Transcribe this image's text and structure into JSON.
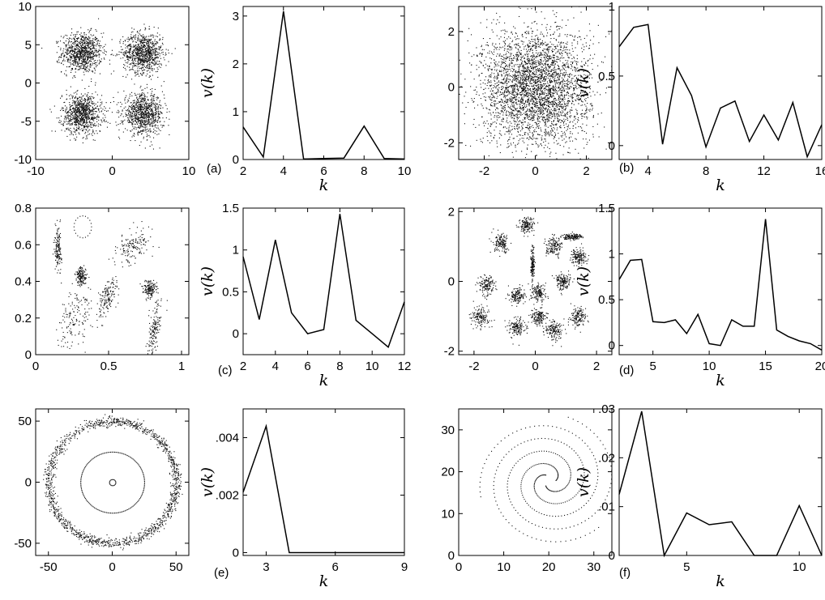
{
  "chart_data": [
    {
      "id": "a-scatter",
      "type": "scatter",
      "xlim": [
        -10,
        10
      ],
      "ylim": [
        -10,
        10
      ],
      "xticks": [
        "-10",
        "0",
        "10"
      ],
      "yticks": [
        "-10",
        "-5",
        "0",
        "5",
        "10"
      ],
      "clusters": [
        {
          "x": -4,
          "y": 4,
          "sx": 1.3,
          "sy": 1.3
        },
        {
          "x": 4,
          "y": 4,
          "sx": 1.3,
          "sy": 1.3
        },
        {
          "x": -4,
          "y": -4,
          "sx": 1.3,
          "sy": 1.3
        },
        {
          "x": 4,
          "y": -4,
          "sx": 1.3,
          "sy": 1.3
        }
      ]
    },
    {
      "id": "a-line",
      "type": "line",
      "panel": "(a)",
      "xlabel": "k",
      "ylabel": "v(k)",
      "xlim": [
        2,
        10
      ],
      "ylim": [
        0,
        3.2
      ],
      "xticks": [
        "2",
        "4",
        "6",
        "8",
        "10"
      ],
      "yticks": [
        "0",
        "1",
        "2",
        "3"
      ],
      "x": [
        2,
        3,
        4,
        5,
        6,
        7,
        8,
        9,
        10
      ],
      "y": [
        0.68,
        0.05,
        3.1,
        0.01,
        0.02,
        0.03,
        0.7,
        0.02,
        0.01
      ]
    },
    {
      "id": "b-scatter",
      "type": "scatter",
      "xlim": [
        -3,
        3
      ],
      "ylim": [
        -2.6,
        2.9
      ],
      "xticks": [
        "-2",
        "0",
        "2"
      ],
      "yticks": [
        "-2",
        "0",
        "2"
      ],
      "clusters": [
        {
          "x": 0,
          "y": 0,
          "sx": 1.05,
          "sy": 1.05
        }
      ]
    },
    {
      "id": "b-line",
      "type": "line",
      "panel": "(b)",
      "xlabel": "k",
      "ylabel": "v(k)",
      "xlim": [
        2,
        16
      ],
      "ylim": [
        -0.1,
        1
      ],
      "xticks": [
        "4",
        "8",
        "12",
        "16"
      ],
      "yticks": [
        "0",
        "0.5",
        "1"
      ],
      "x": [
        2,
        3,
        4,
        5,
        6,
        7,
        8,
        9,
        10,
        11,
        12,
        13,
        14,
        15,
        16
      ],
      "y": [
        0.71,
        0.85,
        0.87,
        0.01,
        0.56,
        0.36,
        -0.01,
        0.27,
        0.32,
        0.03,
        0.22,
        0.04,
        0.31,
        -0.08,
        0.15
      ]
    },
    {
      "id": "c-scatter",
      "type": "scatter",
      "xlim": [
        0,
        1.05
      ],
      "ylim": [
        0,
        0.8
      ],
      "xticks": [
        "0",
        "0.5",
        "1"
      ],
      "yticks": [
        "0",
        "0.2",
        "0.4",
        "0.6",
        "0.8"
      ],
      "clusters": [
        {
          "x": 0.15,
          "y": 0.58,
          "sx": 0.012,
          "sy": 0.06
        },
        {
          "x": 0.32,
          "y": 0.7,
          "ring": 0.06
        },
        {
          "x": 0.67,
          "y": 0.6,
          "sx": 0.07,
          "sy": 0.04,
          "tilt": 0.5
        },
        {
          "x": 0.31,
          "y": 0.43,
          "sx": 0.02,
          "sy": 0.025
        },
        {
          "x": 0.49,
          "y": 0.31,
          "sx": 0.025,
          "sy": 0.06,
          "tilt": -0.4
        },
        {
          "x": 0.78,
          "y": 0.36,
          "sx": 0.025,
          "sy": 0.025
        },
        {
          "x": 0.26,
          "y": 0.2,
          "sx": 0.05,
          "sy": 0.09,
          "tilt": -0.3
        },
        {
          "x": 0.81,
          "y": 0.14,
          "sx": 0.02,
          "sy": 0.07,
          "tilt": -0.2
        }
      ]
    },
    {
      "id": "c-line",
      "type": "line",
      "panel": "(c)",
      "xlabel": "k",
      "ylabel": "v(k)",
      "xlim": [
        2,
        12
      ],
      "ylim": [
        -0.25,
        1.5
      ],
      "xticks": [
        "2",
        "4",
        "6",
        "8",
        "10",
        "12"
      ],
      "yticks": [
        "0",
        "0.5",
        "1",
        "1.5"
      ],
      "x": [
        2,
        3,
        4,
        5,
        6,
        7,
        8,
        9,
        10,
        11,
        12
      ],
      "y": [
        0.92,
        0.17,
        1.12,
        0.25,
        0.0,
        0.05,
        1.43,
        0.16,
        0.0,
        -0.16,
        0.38
      ]
    },
    {
      "id": "d-scatter",
      "type": "scatter",
      "xlim": [
        -2.5,
        2.5
      ],
      "ylim": [
        -2.1,
        2.1
      ],
      "xticks": [
        "-2",
        "0",
        "2"
      ],
      "yticks": [
        "-2",
        "0",
        "2"
      ],
      "clusters": [
        {
          "x": -0.3,
          "y": 1.6,
          "sx": 0.12,
          "sy": 0.12
        },
        {
          "x": -1.1,
          "y": 1.1,
          "sx": 0.13,
          "sy": 0.13
        },
        {
          "x": 0.6,
          "y": 1.0,
          "sx": 0.13,
          "sy": 0.13
        },
        {
          "x": 1.2,
          "y": 1.3,
          "sx": 0.18,
          "sy": 0.04
        },
        {
          "x": 1.4,
          "y": 0.7,
          "sx": 0.12,
          "sy": 0.12
        },
        {
          "x": -0.1,
          "y": 0.5,
          "sx": 0.03,
          "sy": 0.25
        },
        {
          "x": -1.6,
          "y": -0.1,
          "sx": 0.13,
          "sy": 0.13
        },
        {
          "x": -0.6,
          "y": -0.4,
          "sx": 0.12,
          "sy": 0.12
        },
        {
          "x": 0.1,
          "y": -0.3,
          "sx": 0.12,
          "sy": 0.12
        },
        {
          "x": 0.9,
          "y": 0.0,
          "sx": 0.12,
          "sy": 0.12
        },
        {
          "x": -1.8,
          "y": -1.0,
          "sx": 0.15,
          "sy": 0.15
        },
        {
          "x": -0.6,
          "y": -1.3,
          "sx": 0.13,
          "sy": 0.13
        },
        {
          "x": 0.1,
          "y": -1.0,
          "sx": 0.12,
          "sy": 0.12
        },
        {
          "x": 0.6,
          "y": -1.4,
          "sx": 0.15,
          "sy": 0.15
        },
        {
          "x": 1.4,
          "y": -1.0,
          "sx": 0.13,
          "sy": 0.13
        }
      ]
    },
    {
      "id": "d-line",
      "type": "line",
      "panel": "(d)",
      "xlabel": "k",
      "ylabel": "v(k)",
      "xlim": [
        2,
        20
      ],
      "ylim": [
        -0.1,
        1.5
      ],
      "xticks": [
        "5",
        "10",
        "15",
        "20"
      ],
      "yticks": [
        "0",
        "0.5",
        "1",
        "1.5"
      ],
      "x": [
        2,
        3,
        4,
        5,
        6,
        7,
        8,
        9,
        10,
        11,
        12,
        13,
        14,
        15,
        16,
        17,
        18,
        19,
        20
      ],
      "y": [
        0.72,
        0.93,
        0.94,
        0.26,
        0.25,
        0.28,
        0.13,
        0.34,
        0.02,
        0.0,
        0.28,
        0.21,
        0.21,
        1.38,
        0.17,
        0.1,
        0.05,
        0.02,
        -0.05
      ]
    },
    {
      "id": "e-scatter",
      "type": "scatter",
      "xlim": [
        -60,
        60
      ],
      "ylim": [
        -60,
        60
      ],
      "xticks": [
        "-50",
        "0",
        "50"
      ],
      "yticks": [
        "-50",
        "0",
        "50"
      ],
      "clusters": [
        {
          "x": 0,
          "y": 0,
          "ring": 50,
          "noise": 2
        },
        {
          "x": 0,
          "y": 0,
          "ring": 25,
          "noise": 0
        },
        {
          "x": 0,
          "y": 0,
          "ring": 2.5,
          "noise": 0
        }
      ]
    },
    {
      "id": "e-line",
      "type": "line",
      "panel": "(e)",
      "xlabel": "k",
      "ylabel": "v(k)",
      "xlim": [
        2,
        9
      ],
      "ylim": [
        -0.0001,
        0.005
      ],
      "xticks": [
        "3",
        "6",
        "9"
      ],
      "yticks": [
        "0",
        ".002",
        ".004"
      ],
      "x": [
        2,
        3,
        4,
        5,
        6,
        7,
        8,
        9
      ],
      "y": [
        0.0021,
        0.0044,
        0.0,
        0.0,
        0.0,
        0.0,
        0.0,
        0.0
      ]
    },
    {
      "id": "f-scatter",
      "type": "scatter",
      "xlim": [
        0,
        34
      ],
      "ylim": [
        0,
        35
      ],
      "xticks": [
        "0",
        "10",
        "20",
        "30"
      ],
      "yticks": [
        "0",
        "10",
        "20",
        "30"
      ],
      "clusters": [
        {
          "x": 20,
          "y": 18,
          "spiral": 3
        }
      ]
    },
    {
      "id": "f-line",
      "type": "line",
      "panel": "(f)",
      "xlabel": "k",
      "ylabel": "v(k)",
      "xlim": [
        2,
        11
      ],
      "ylim": [
        0,
        0.03
      ],
      "xticks": [
        "5",
        "10"
      ],
      "yticks": [
        "0",
        ".01",
        ".02",
        ".03"
      ],
      "x": [
        2,
        3,
        4,
        5,
        6,
        7,
        8,
        9,
        10,
        11
      ],
      "y": [
        0.0125,
        0.0295,
        0.0,
        0.0087,
        0.0063,
        0.0069,
        0.0,
        0.0,
        0.0102,
        0.0
      ]
    }
  ]
}
